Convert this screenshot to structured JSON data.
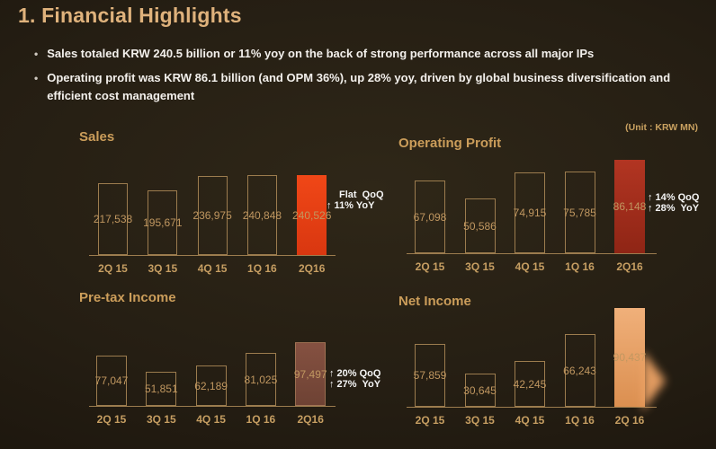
{
  "slide": {
    "title": "1. Financial Highlights",
    "bullets": [
      "Sales totaled KRW 240.5 billion or 11% yoy on the back of strong performance across all major IPs",
      "Operating profit was KRW 86.1 billion (and OPM 36%), up 28% yoy, driven by global business diversification and efficient cost management"
    ],
    "unit_label": "(Unit : KRW MN)"
  },
  "colors": {
    "title_gold": "#dfb27c",
    "chart_title_gold": "#cb9d5a",
    "label_gold": "#c09760",
    "axis_tan": "#9c7c4e",
    "annotation_white": "#f5f5f5",
    "sales_highlight": "#e8431a",
    "operating_profit_highlight": "#a62f1d",
    "pretax_highlight": "#7d4a39",
    "net_income_highlight": "#eca265"
  },
  "chart_data": [
    {
      "type": "bar",
      "title": "Sales",
      "categories": [
        "2Q 15",
        "3Q 15",
        "4Q 15",
        "1Q 16",
        "2Q16"
      ],
      "values": [
        217538,
        195671,
        236975,
        240848,
        240526
      ],
      "value_labels": [
        "217,538",
        "195,671",
        "236,975",
        "240,848",
        "240,526"
      ],
      "highlight_index": 4,
      "highlight_colors": [
        "#f04717",
        "#d93710"
      ],
      "highlight_dir": "180deg",
      "annotation": [
        "Flat  QoQ",
        "↑ 11% YoY"
      ],
      "ylim": [
        0,
        250000
      ],
      "grid": false,
      "legend": false
    },
    {
      "type": "bar",
      "title": "Operating Profit",
      "categories": [
        "2Q 15",
        "3Q 15",
        "4Q 15",
        "1Q 16",
        "2Q16"
      ],
      "values": [
        67098,
        50586,
        74915,
        75785,
        86148
      ],
      "value_labels": [
        "67,098",
        "50,586",
        "74,915",
        "75,785",
        "86,148"
      ],
      "highlight_index": 4,
      "highlight_colors": [
        "#b23522",
        "#8f2515"
      ],
      "highlight_dir": "180deg",
      "annotation": [
        "↑ 14% QoQ",
        "↑ 28%  YoY"
      ],
      "ylim": [
        0,
        90000
      ],
      "grid": false,
      "legend": false
    },
    {
      "type": "bar",
      "title": "Pre-tax Income",
      "categories": [
        "2Q 15",
        "3Q 15",
        "4Q 15",
        "1Q 16",
        "2Q16"
      ],
      "values": [
        77047,
        51851,
        62189,
        81025,
        97497
      ],
      "value_labels": [
        "77,047",
        "51,851",
        "62,189",
        "81,025",
        "97,497"
      ],
      "highlight_index": 4,
      "highlight_colors": [
        "#855141",
        "#6e4234"
      ],
      "highlight_dir": "180deg",
      "annotation": [
        "↑ 20% QoQ",
        "↑ 27%  YoY"
      ],
      "ylim": [
        0,
        100000
      ],
      "grid": false,
      "legend": false
    },
    {
      "type": "bar",
      "title": "Net Income",
      "categories": [
        "2Q 15",
        "3Q 15",
        "4Q 15",
        "1Q 16",
        "2Q 16"
      ],
      "values": [
        57859,
        30645,
        42245,
        66243,
        90437
      ],
      "value_labels": [
        "57,859",
        "30,645",
        "42,245",
        "66,243",
        "90,437"
      ],
      "highlight_index": 4,
      "highlight_colors": [
        "#f0b07a",
        "#db8f50"
      ],
      "highlight_dir": "180deg",
      "annotation": [],
      "ylim": [
        0,
        95000
      ],
      "grid": false,
      "legend": false
    }
  ]
}
